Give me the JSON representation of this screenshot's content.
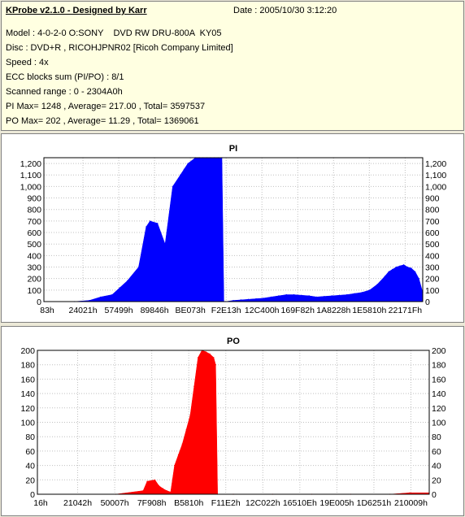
{
  "info": {
    "title": "KProbe v2.1.0 - Designed by Karr",
    "date": "Date : 2005/10/30 3:12:20",
    "lines": [
      "Model : 4-0-2-0 O:SONY    DVD RW DRU-800A  KY05",
      "Disc : DVD+R , RICOHJPNR02 [Ricoh Company Limited]",
      "Speed : 4x",
      "ECC blocks sum (PI/PO) : 8/1",
      "Scanned range : 0 - 2304A0h",
      "PI Max= 1248 , Average= 217.00 , Total= 3597537",
      "PO Max= 202 , Average= 11.29 , Total= 1369061"
    ]
  },
  "chart_data": [
    {
      "type": "area",
      "title": "PI",
      "color": "#0000ff",
      "ylim": [
        0,
        1250
      ],
      "yticks": [
        0,
        100,
        200,
        300,
        400,
        500,
        600,
        700,
        800,
        900,
        1000,
        1100,
        1200
      ],
      "ytick_labels": [
        "0",
        "100",
        "200",
        "300",
        "400",
        "500",
        "600",
        "700",
        "800",
        "900",
        "1,000",
        "1,100",
        "1,200"
      ],
      "xtick_labels": [
        "83h",
        "24021h",
        "57499h",
        "89846h",
        "BE073h",
        "F2E13h",
        "12C400h",
        "169F82h",
        "1A8228h",
        "1E5810h",
        "22171Fh"
      ],
      "x": [
        0.0,
        0.08,
        0.12,
        0.15,
        0.18,
        0.2,
        0.22,
        0.25,
        0.27,
        0.28,
        0.3,
        0.32,
        0.34,
        0.36,
        0.37,
        0.38,
        0.4,
        0.41,
        0.42,
        0.43,
        0.44,
        0.45,
        0.46,
        0.47,
        0.475,
        0.48,
        0.5,
        0.52,
        0.54,
        0.56,
        0.58,
        0.6,
        0.62,
        0.64,
        0.66,
        0.68,
        0.7,
        0.72,
        0.74,
        0.76,
        0.78,
        0.8,
        0.82,
        0.84,
        0.86,
        0.88,
        0.9,
        0.91,
        0.92,
        0.93,
        0.94,
        0.95,
        0.96,
        0.97,
        0.98,
        0.99,
        1.0
      ],
      "y": [
        0,
        0,
        10,
        40,
        60,
        120,
        180,
        300,
        650,
        700,
        680,
        500,
        1000,
        1100,
        1150,
        1200,
        1250,
        1250,
        1250,
        1250,
        1250,
        1250,
        1250,
        1250,
        0,
        0,
        10,
        15,
        20,
        25,
        30,
        40,
        50,
        60,
        60,
        55,
        50,
        40,
        45,
        50,
        55,
        60,
        70,
        80,
        100,
        150,
        220,
        260,
        280,
        300,
        310,
        320,
        300,
        290,
        260,
        200,
        80
      ]
    },
    {
      "type": "area",
      "title": "PO",
      "color": "#ff0000",
      "ylim": [
        0,
        200
      ],
      "yticks": [
        0,
        20,
        40,
        60,
        80,
        100,
        120,
        140,
        160,
        180,
        200
      ],
      "ytick_labels": [
        "0",
        "20",
        "40",
        "60",
        "80",
        "100",
        "120",
        "140",
        "160",
        "180",
        "200"
      ],
      "xtick_labels": [
        "16h",
        "21042h",
        "50007h",
        "7F908h",
        "B5810h",
        "F11E2h",
        "12C022h",
        "16510Eh",
        "19E005h",
        "1D6251h",
        "210009h"
      ],
      "x": [
        0.0,
        0.2,
        0.27,
        0.28,
        0.3,
        0.31,
        0.32,
        0.33,
        0.34,
        0.35,
        0.36,
        0.37,
        0.38,
        0.39,
        0.4,
        0.41,
        0.42,
        0.43,
        0.44,
        0.45,
        0.455,
        0.46,
        0.5,
        0.6,
        0.7,
        0.8,
        0.9,
        0.95,
        1.0
      ],
      "y": [
        0,
        0,
        5,
        18,
        20,
        12,
        8,
        5,
        3,
        40,
        55,
        70,
        90,
        110,
        150,
        190,
        200,
        198,
        195,
        190,
        180,
        0,
        0,
        0,
        0,
        0,
        0,
        2,
        2
      ]
    }
  ]
}
